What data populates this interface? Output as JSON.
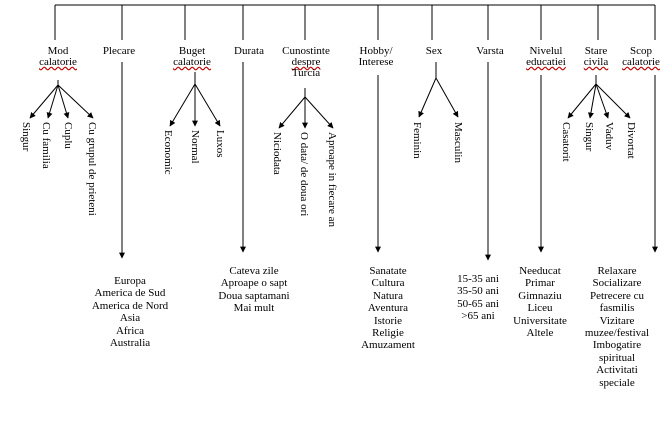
{
  "categories": {
    "mod": [
      "Mod",
      "calatorie"
    ],
    "plecare": [
      "Plecare"
    ],
    "buget": [
      "Buget",
      "calatorie"
    ],
    "durata": [
      "Durata"
    ],
    "cunostinte": [
      "Cunostinte",
      "despre",
      "Turcia"
    ],
    "hobby": [
      "Hobby/",
      "Interese"
    ],
    "sex": [
      "Sex"
    ],
    "varsta": [
      "Varsta"
    ],
    "nivel": [
      "Nivelul",
      "educatiei"
    ],
    "stare": [
      "Stare",
      "civila"
    ],
    "scop": [
      "Scop",
      "calatorie"
    ]
  },
  "branches": {
    "mod": [
      "Singur",
      "Cu familia",
      "Cuplu",
      "Cu grupul de prieteni"
    ],
    "buget": [
      "Economic",
      "Normal",
      "Luxos"
    ],
    "cunostinte": [
      "Niciodata",
      "O data/ de doua ori",
      "Aproape in fiecare an"
    ],
    "sex": [
      "Feminin",
      "Masculin"
    ],
    "stare": [
      "Casatorit",
      "Singur",
      "Vaduv",
      "Divortat"
    ]
  },
  "lists": {
    "plecare": [
      "Europa",
      "America de Sud",
      "America de Nord",
      "Asia",
      "Africa",
      "Australia"
    ],
    "durata": [
      "Cateva zile",
      "Aproape o sapt",
      "Doua saptamani",
      "Mai mult"
    ],
    "hobby": [
      "Sanatate",
      "Cultura",
      "Natura",
      "Aventura",
      "Istorie",
      "Religie",
      "Amuzament"
    ],
    "varsta": [
      "15-35 ani",
      "35-50 ani",
      "50-65 ani",
      ">65 ani"
    ],
    "nivel": [
      "Needucat",
      "Primar",
      "Gimnaziu",
      "Liceu",
      "Universitate",
      "Altele"
    ],
    "scop": [
      "Relaxare",
      "Socializare",
      "Petrecere cu",
      "fasmilis",
      "Vizitare",
      "muzee/festival",
      "Imbogatire",
      "spiritual",
      "Activitati",
      "speciale"
    ]
  }
}
